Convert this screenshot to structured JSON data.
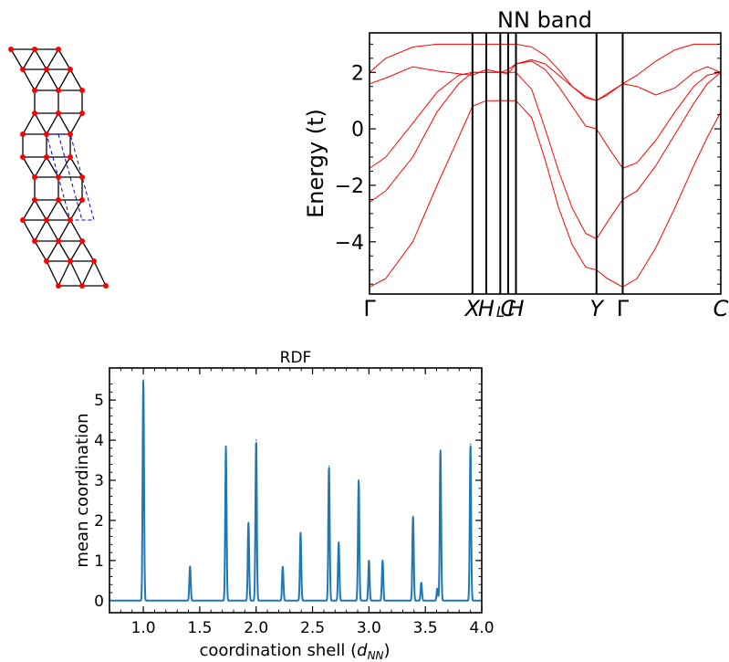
{
  "lattice": {
    "atom_color": "#ff0000",
    "bond_color": "#000000",
    "cell_color": "#0000cc",
    "structure": "triangular-square strip with dashed unit cell"
  },
  "chart_data": [
    {
      "type": "line",
      "title": "NN band",
      "xlabel": "",
      "ylabel": "Energy (t)",
      "ylim": [
        -5.85,
        3.4
      ],
      "yticks": [
        -4,
        -2,
        0,
        2
      ],
      "ytick_labels": [
        "−4",
        "−2",
        "0",
        "2"
      ],
      "line_color": "#ff0000",
      "kpath": {
        "labels": [
          "Γ",
          "X",
          "H",
          "L",
          "C",
          "H",
          "Y",
          "Γ",
          "C"
        ],
        "positions": [
          0,
          0.381,
          0.432,
          0.484,
          0.513,
          0.542,
          0.84,
          0.937,
          1.3
        ]
      },
      "series": [
        {
          "x": [
            0,
            0.06,
            0.16,
            0.25,
            0.33,
            0.381,
            0.432,
            0.484,
            0.513,
            0.542,
            0.6,
            0.65,
            0.7,
            0.75,
            0.8,
            0.84,
            0.88,
            0.937,
            0.99,
            1.06,
            1.13,
            1.2,
            1.25,
            1.3
          ],
          "y": [
            -5.6,
            -5.3,
            -4.0,
            -2.0,
            -0.3,
            0.8,
            1.0,
            1.0,
            1.0,
            1.0,
            0.4,
            -1.1,
            -2.8,
            -4.1,
            -4.9,
            -5.0,
            -5.3,
            -5.6,
            -5.3,
            -4.2,
            -2.8,
            -1.3,
            -0.3,
            0.6
          ]
        },
        {
          "x": [
            0,
            0.06,
            0.16,
            0.25,
            0.33,
            0.381,
            0.432,
            0.484,
            0.513,
            0.542,
            0.6,
            0.65,
            0.7,
            0.75,
            0.8,
            0.84,
            0.88,
            0.937,
            0.99,
            1.06,
            1.13,
            1.2,
            1.25,
            1.3
          ],
          "y": [
            -2.6,
            -2.2,
            -1.0,
            0.6,
            1.6,
            2.0,
            2.0,
            2.0,
            2.0,
            2.0,
            1.4,
            0.0,
            -1.5,
            -2.8,
            -3.7,
            -3.9,
            -3.3,
            -2.5,
            -2.2,
            -1.3,
            -0.2,
            0.9,
            1.6,
            2.0
          ]
        },
        {
          "x": [
            0,
            0.06,
            0.16,
            0.25,
            0.33,
            0.381,
            0.432,
            0.484,
            0.513,
            0.542,
            0.6,
            0.65,
            0.7,
            0.75,
            0.8,
            0.84,
            0.88,
            0.937,
            0.99,
            1.06,
            1.13,
            1.2,
            1.25,
            1.3
          ],
          "y": [
            -1.4,
            -1.0,
            0.2,
            1.3,
            1.9,
            2.0,
            2.0,
            2.0,
            2.1,
            2.3,
            2.4,
            2.1,
            1.5,
            0.8,
            0.1,
            0.0,
            -0.6,
            -1.4,
            -1.2,
            -0.4,
            0.6,
            1.5,
            1.9,
            2.0
          ]
        },
        {
          "x": [
            0,
            0.06,
            0.16,
            0.25,
            0.33,
            0.381,
            0.432,
            0.484,
            0.513,
            0.542,
            0.6,
            0.65,
            0.7,
            0.75,
            0.8,
            0.84,
            0.88,
            0.937,
            0.99,
            1.06,
            1.13,
            1.2,
            1.25,
            1.3
          ],
          "y": [
            1.6,
            1.8,
            2.2,
            2.05,
            1.95,
            1.9,
            2.1,
            2.0,
            1.95,
            2.3,
            2.45,
            2.3,
            1.9,
            1.5,
            1.15,
            1.0,
            1.25,
            1.6,
            1.5,
            1.2,
            1.45,
            2.0,
            2.2,
            2.0
          ]
        },
        {
          "x": [
            0,
            0.06,
            0.16,
            0.25,
            0.33,
            0.381,
            0.432,
            0.484,
            0.513,
            0.542,
            0.6,
            0.65,
            0.7,
            0.75,
            0.8,
            0.84,
            0.88,
            0.937,
            0.99,
            1.06,
            1.13,
            1.2,
            1.25,
            1.3
          ],
          "y": [
            2.0,
            2.5,
            2.9,
            3.0,
            3.0,
            3.0,
            3.0,
            3.0,
            3.0,
            3.0,
            2.9,
            2.6,
            2.1,
            1.5,
            1.1,
            1.0,
            1.2,
            1.6,
            1.9,
            2.4,
            2.8,
            3.0,
            3.0,
            3.0
          ]
        }
      ]
    },
    {
      "type": "line",
      "title": "RDF",
      "xlabel": "coordination shell",
      "xlabel_symbol": "d",
      "xlabel_subscript": "NN",
      "ylabel": "mean coordination",
      "xlim": [
        0.7,
        4.0
      ],
      "ylim": [
        -0.3,
        5.8
      ],
      "xticks": [
        1.0,
        1.5,
        2.0,
        2.5,
        3.0,
        3.5,
        4.0
      ],
      "xtick_labels": [
        "1.0",
        "1.5",
        "2.0",
        "2.5",
        "3.0",
        "3.5",
        "4.0"
      ],
      "yticks": [
        0,
        1,
        2,
        3,
        4,
        5
      ],
      "ytick_labels": [
        "0",
        "1",
        "2",
        "3",
        "4",
        "5"
      ],
      "line_color": "#1f77b4",
      "peaks": [
        {
          "x": 1.0,
          "y": 5.5
        },
        {
          "x": 1.414,
          "y": 0.85
        },
        {
          "x": 1.732,
          "y": 3.85
        },
        {
          "x": 1.932,
          "y": 1.95
        },
        {
          "x": 2.0,
          "y": 4.0
        },
        {
          "x": 2.236,
          "y": 0.85
        },
        {
          "x": 2.394,
          "y": 1.7
        },
        {
          "x": 2.646,
          "y": 3.35
        },
        {
          "x": 2.732,
          "y": 1.45
        },
        {
          "x": 2.909,
          "y": 3.0
        },
        {
          "x": 3.0,
          "y": 1.0
        },
        {
          "x": 3.121,
          "y": 1.0
        },
        {
          "x": 3.391,
          "y": 2.1
        },
        {
          "x": 3.464,
          "y": 0.45
        },
        {
          "x": 3.606,
          "y": 0.3
        },
        {
          "x": 3.634,
          "y": 3.75
        },
        {
          "x": 3.9,
          "y": 3.9
        }
      ]
    }
  ]
}
